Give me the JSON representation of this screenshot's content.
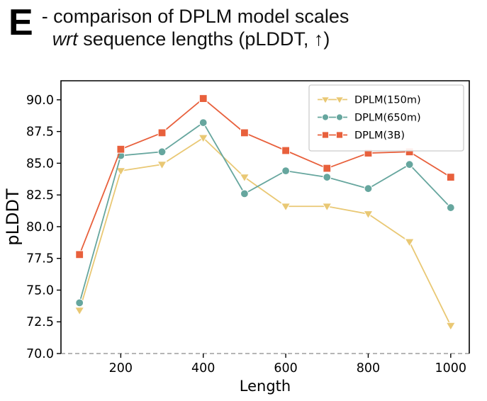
{
  "panel": {
    "label": "E",
    "title_line1": "- comparison of DPLM model scales",
    "title_line2_italic": "wrt",
    "title_line2_rest": " sequence lengths (pLDDT, ↑)"
  },
  "chart_data": {
    "type": "line",
    "title": "comparison of DPLM model scales wrt sequence lengths (pLDDT, ↑)",
    "xlabel": "Length",
    "ylabel": "pLDDT",
    "x": [
      100,
      200,
      300,
      400,
      500,
      600,
      700,
      800,
      900,
      1000
    ],
    "series": [
      {
        "name": "DPLM(150m)",
        "marker": "triangle-down",
        "color": "#E9C874",
        "values": [
          73.4,
          84.4,
          84.9,
          87.0,
          83.9,
          81.6,
          81.6,
          81.0,
          78.8,
          72.2
        ]
      },
      {
        "name": "DPLM(650m)",
        "marker": "circle",
        "color": "#66A69E",
        "values": [
          74.0,
          85.6,
          85.9,
          88.2,
          82.6,
          84.4,
          83.9,
          83.0,
          84.9,
          81.5
        ]
      },
      {
        "name": "DPLM(3B)",
        "marker": "square",
        "color": "#E8603C",
        "values": [
          77.8,
          86.1,
          87.4,
          90.1,
          87.4,
          86.0,
          84.6,
          85.8,
          85.9,
          83.9
        ]
      }
    ],
    "xticks": [
      200,
      400,
      600,
      800,
      1000
    ],
    "yticks": [
      70.0,
      72.5,
      75.0,
      77.5,
      80.0,
      82.5,
      85.0,
      87.5,
      90.0
    ],
    "xlim": [
      55,
      1045
    ],
    "ylim": [
      70,
      91.5
    ],
    "baseline_dashed_at": 70.0,
    "legend_position": "upper right",
    "grid": false,
    "colors": {
      "axis": "#000000",
      "baseline": "#8a8a8a",
      "legend_border": "#cccccc"
    }
  }
}
